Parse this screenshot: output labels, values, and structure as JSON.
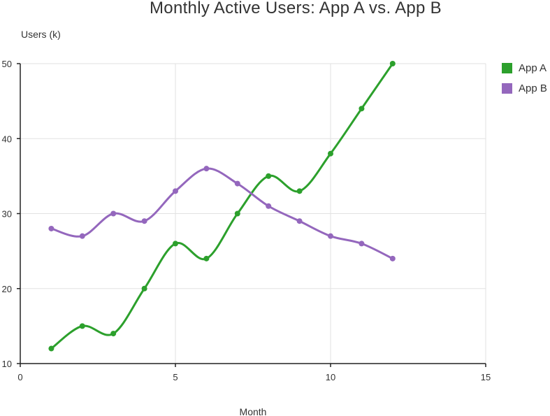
{
  "chart_data": {
    "type": "line",
    "title": "Monthly Active Users: App A vs. App B",
    "xlabel": "Month",
    "ylabel": "Users (k)",
    "xlim": [
      0,
      15
    ],
    "ylim": [
      10,
      50
    ],
    "xticks": [
      0,
      5,
      10,
      15
    ],
    "yticks": [
      10,
      20,
      30,
      40,
      50
    ],
    "grid": true,
    "legend_position": "right",
    "series": [
      {
        "name": "App A",
        "color": "#2ca02c",
        "x": [
          1,
          2,
          3,
          4,
          5,
          6,
          7,
          8,
          9,
          10,
          11,
          12
        ],
        "y": [
          12,
          15,
          14,
          20,
          26,
          24,
          30,
          35,
          33,
          38,
          44,
          50
        ]
      },
      {
        "name": "App B",
        "color": "#9467bd",
        "x": [
          1,
          2,
          3,
          4,
          5,
          6,
          7,
          8,
          9,
          10,
          11,
          12
        ],
        "y": [
          28,
          27,
          30,
          29,
          33,
          36,
          34,
          31,
          29,
          27,
          26,
          24
        ]
      }
    ]
  }
}
